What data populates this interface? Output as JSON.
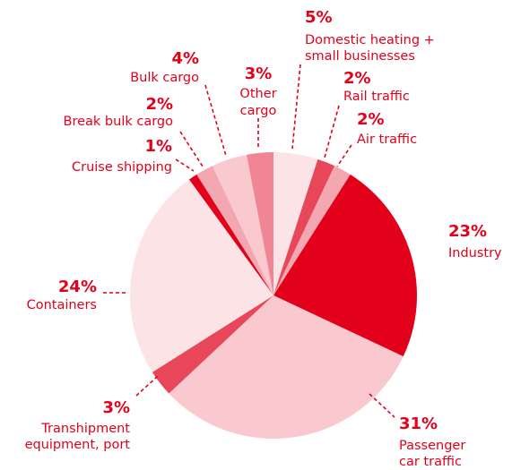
{
  "chart_data": {
    "type": "pie",
    "categories": [
      "Domestic heating +\nsmall businesses",
      "Rail traffic",
      "Air traffic",
      "Industry",
      "Passenger\ncar traffic",
      "Transhipment\nequipment, port",
      "Containers",
      "Cruise shipping",
      "Break bulk cargo",
      "Bulk cargo",
      "Other\ncargo"
    ],
    "values": [
      5,
      2,
      2,
      23,
      31,
      3,
      24,
      1,
      2,
      4,
      3
    ],
    "value_labels": [
      "5%",
      "2%",
      "2%",
      "23%",
      "31%",
      "3%",
      "24%",
      "1%",
      "2%",
      "4%",
      "3%"
    ],
    "colors": [
      "#fce4e6",
      "#e8475a",
      "#f3a7b0",
      "#e2001a",
      "#f9c9cf",
      "#e8475a",
      "#fce4e6",
      "#e2001a",
      "#f3a7b0",
      "#f9c9cf",
      "#f08693"
    ]
  }
}
